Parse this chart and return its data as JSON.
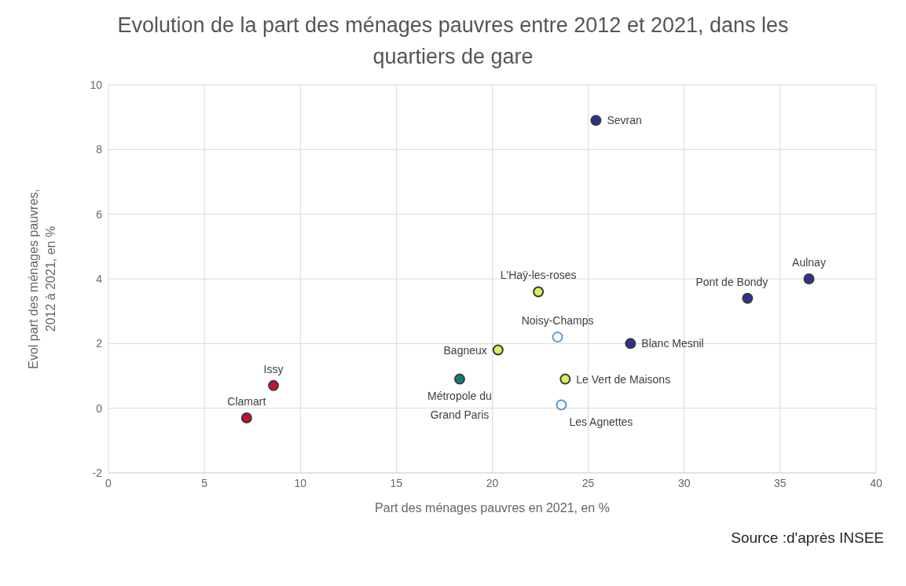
{
  "chart_data": {
    "type": "scatter",
    "title": "Evolution de la part des ménages pauvres entre 2012 et 2021, dans les quartiers de gare",
    "xlabel": "Part des ménages pauvres en 2021, en %",
    "ylabel": "Evol part des ménages pauvres, 2012 à 2021, en %",
    "x": [
      25.4,
      36.5,
      33.3,
      27.2,
      22.4,
      23.4,
      20.3,
      23.8,
      18.3,
      23.6,
      8.6,
      7.2
    ],
    "series": [
      {
        "values": [
          8.9,
          4.0,
          3.4,
          2.0,
          3.6,
          2.2,
          1.8,
          0.9,
          0.9,
          0.1,
          0.7,
          -0.3
        ],
        "colors": [
          "#2e3192",
          "#2e3192",
          "#2e3192",
          "#2e3192",
          "#d9ef5a",
          "#ffffff",
          "#d9ef5a",
          "#d9ef5a",
          "#0e7c7b",
          "#ffffff",
          "#c8102e",
          "#c8102e"
        ]
      }
    ],
    "xlim": [
      0,
      40
    ],
    "xticks": [
      0,
      5,
      10,
      15,
      20,
      25,
      30,
      35,
      40
    ],
    "ylim": [
      -2,
      10
    ],
    "yticks": [
      -2,
      0,
      2,
      4,
      6,
      8,
      10
    ],
    "grid": true,
    "marker": "circle",
    "annotations": [
      {
        "text": "Sevran",
        "x": 25.4,
        "y": 8.9
      },
      {
        "text": "Aulnay",
        "x": 36.5,
        "y": 4.0
      },
      {
        "text": "Pont de Bondy",
        "x": 33.3,
        "y": 3.4
      },
      {
        "text": "Blanc Mesnil",
        "x": 27.2,
        "y": 2.0
      },
      {
        "text": "L'Haÿ-les-roses",
        "x": 22.4,
        "y": 3.6
      },
      {
        "text": "Noisy-Champs",
        "x": 23.4,
        "y": 2.2
      },
      {
        "text": "Bagneux",
        "x": 20.3,
        "y": 1.8
      },
      {
        "text": "Le Vert de Maisons",
        "x": 23.8,
        "y": 0.9
      },
      {
        "text": "Métropole du Grand Paris",
        "x": 18.3,
        "y": 0.9
      },
      {
        "text": "Les Agnettes",
        "x": 23.6,
        "y": 0.1
      },
      {
        "text": "Issy",
        "x": 8.6,
        "y": 0.7
      },
      {
        "text": "Clamart",
        "x": 7.2,
        "y": -0.3
      },
      "Source :d'après INSEE"
    ]
  }
}
